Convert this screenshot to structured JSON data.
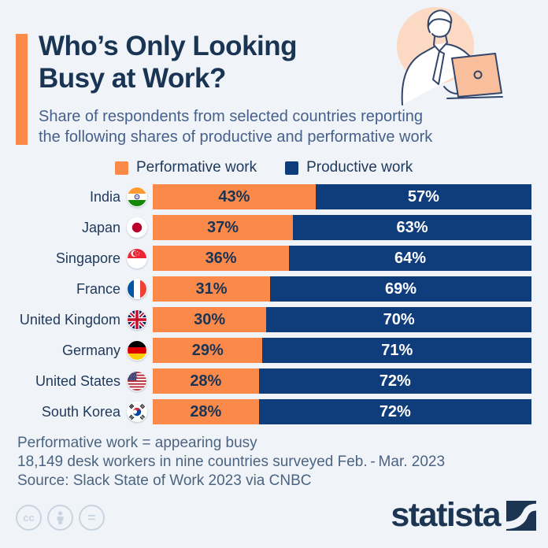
{
  "header": {
    "title_line1": "Who’s Only Looking",
    "title_line2": "Busy at Work?",
    "subtitle_line1": "Share of respondents from selected countries reporting",
    "subtitle_line2": "the following shares of productive and performative work",
    "illustration": "man-working-on-laptop-icon"
  },
  "legend": {
    "performative_label": "Performative work",
    "productive_label": "Productive work"
  },
  "chart_data": {
    "type": "bar",
    "orientation": "horizontal",
    "stacked": true,
    "unit": "%",
    "xlim": [
      0,
      100
    ],
    "grid": false,
    "legend_position": "top",
    "title": "Who’s Only Looking Busy at Work?",
    "categories": [
      "India",
      "Japan",
      "Singapore",
      "France",
      "United Kingdom",
      "Germany",
      "United States",
      "South Korea"
    ],
    "series": [
      {
        "name": "Performative work",
        "color": "#FB8A4A",
        "values": [
          43,
          37,
          36,
          31,
          30,
          29,
          28,
          28
        ]
      },
      {
        "name": "Productive work",
        "color": "#0F3D7C",
        "values": [
          57,
          63,
          64,
          69,
          70,
          71,
          72,
          72
        ]
      }
    ],
    "value_labels": [
      [
        "43%",
        "57%"
      ],
      [
        "37%",
        "63%"
      ],
      [
        "36%",
        "64%"
      ],
      [
        "31%",
        "69%"
      ],
      [
        "30%",
        "70%"
      ],
      [
        "29%",
        "71%"
      ],
      [
        "28%",
        "72%"
      ],
      [
        "28%",
        "72%"
      ]
    ],
    "flags": [
      "india",
      "japan",
      "singapore",
      "france",
      "united-kingdom",
      "germany",
      "united-states",
      "south-korea"
    ]
  },
  "footnotes": {
    "line1": "Performative work = appearing busy",
    "line2": "18,149 desk workers in nine countries surveyed Feb. - Mar. 2023",
    "line3": "Source: Slack State of Work 2023 via CNBC"
  },
  "branding": {
    "logo_text": "statista",
    "cc_icons": [
      "cc-icon",
      "attribution-person-icon",
      "equals-icon"
    ],
    "cc_label": "cc"
  },
  "colors": {
    "background": "#F0F4F8",
    "performative_orange": "#FB8A4A",
    "productive_navy": "#0F3D7C",
    "title_navy": "#1A3454",
    "subtitle_blue_gray": "#45618B",
    "footer_blue_gray": "#4B6481",
    "cc_gray": "#C9D4E1",
    "illustration_peach": "#FBD9C3",
    "laptop_peach": "#F9BF9C"
  }
}
